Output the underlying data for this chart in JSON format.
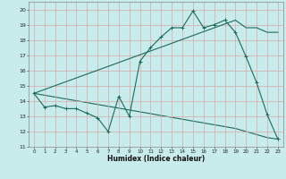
{
  "xlabel": "Humidex (Indice chaleur)",
  "xlim": [
    -0.5,
    23.5
  ],
  "ylim": [
    11,
    20.5
  ],
  "yticks": [
    11,
    12,
    13,
    14,
    15,
    16,
    17,
    18,
    19,
    20
  ],
  "xticks": [
    0,
    1,
    2,
    3,
    4,
    5,
    6,
    7,
    8,
    9,
    10,
    11,
    12,
    13,
    14,
    15,
    16,
    17,
    18,
    19,
    20,
    21,
    22,
    23
  ],
  "bg_color": "#c8ecec",
  "grid_color": "#dba8a8",
  "line_color": "#1a6b5a",
  "line1_x": [
    0,
    1,
    2,
    3,
    4,
    5,
    6,
    7,
    8,
    9,
    10,
    11,
    12,
    13,
    14,
    15,
    16,
    17,
    18,
    19,
    20,
    21,
    22,
    23
  ],
  "line1_y": [
    14.5,
    13.6,
    13.7,
    13.5,
    13.5,
    13.2,
    12.9,
    12.0,
    14.3,
    13.0,
    16.6,
    17.5,
    18.2,
    18.8,
    18.8,
    19.9,
    18.8,
    19.0,
    19.3,
    18.5,
    16.9,
    15.2,
    13.1,
    11.5
  ],
  "line2_x": [
    0,
    19,
    20,
    21,
    22,
    23
  ],
  "line2_y": [
    14.5,
    19.3,
    18.8,
    18.8,
    18.5,
    18.5
  ],
  "line3_x": [
    0,
    19,
    20,
    21,
    22,
    23
  ],
  "line3_y": [
    14.5,
    12.2,
    12.0,
    11.8,
    11.6,
    11.5
  ],
  "figwidth": 3.2,
  "figheight": 2.0,
  "dpi": 100
}
